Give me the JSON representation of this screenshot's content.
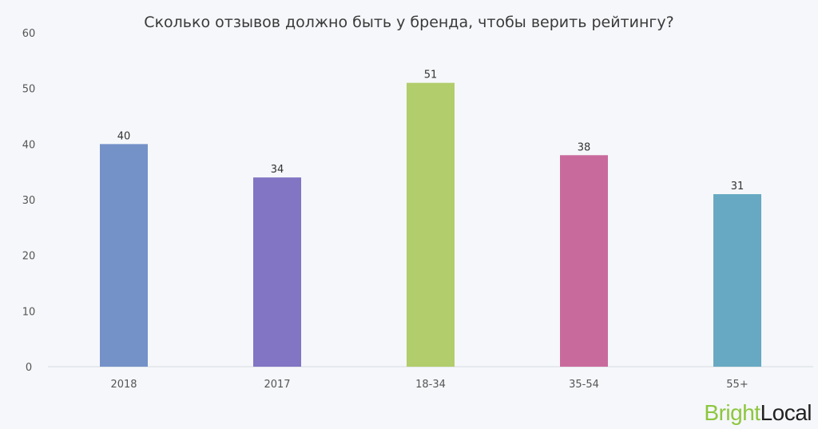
{
  "chart_data": {
    "type": "bar",
    "title": "Сколько отзывов должно быть у бренда, чтобы верить рейтингу?",
    "xlabel": "",
    "ylabel": "",
    "categories": [
      "2018",
      "2017",
      "18-34",
      "35-54",
      "55+"
    ],
    "values": [
      40,
      34,
      51,
      38,
      31
    ],
    "value_labels": [
      "40",
      "34",
      "51",
      "38",
      "31"
    ],
    "colors": [
      "#7592c8",
      "#8275c3",
      "#b2cd6b",
      "#c96a9c",
      "#67a9c2"
    ],
    "ylim": [
      0,
      60
    ],
    "yticks": [
      "0",
      "10",
      "20",
      "30",
      "40",
      "50",
      "60"
    ],
    "grid": false,
    "legend": "none"
  },
  "branding": {
    "logo_bright": "Bright",
    "logo_local": "Local",
    "bright_color": "#8dc63f",
    "local_color": "#222222"
  }
}
